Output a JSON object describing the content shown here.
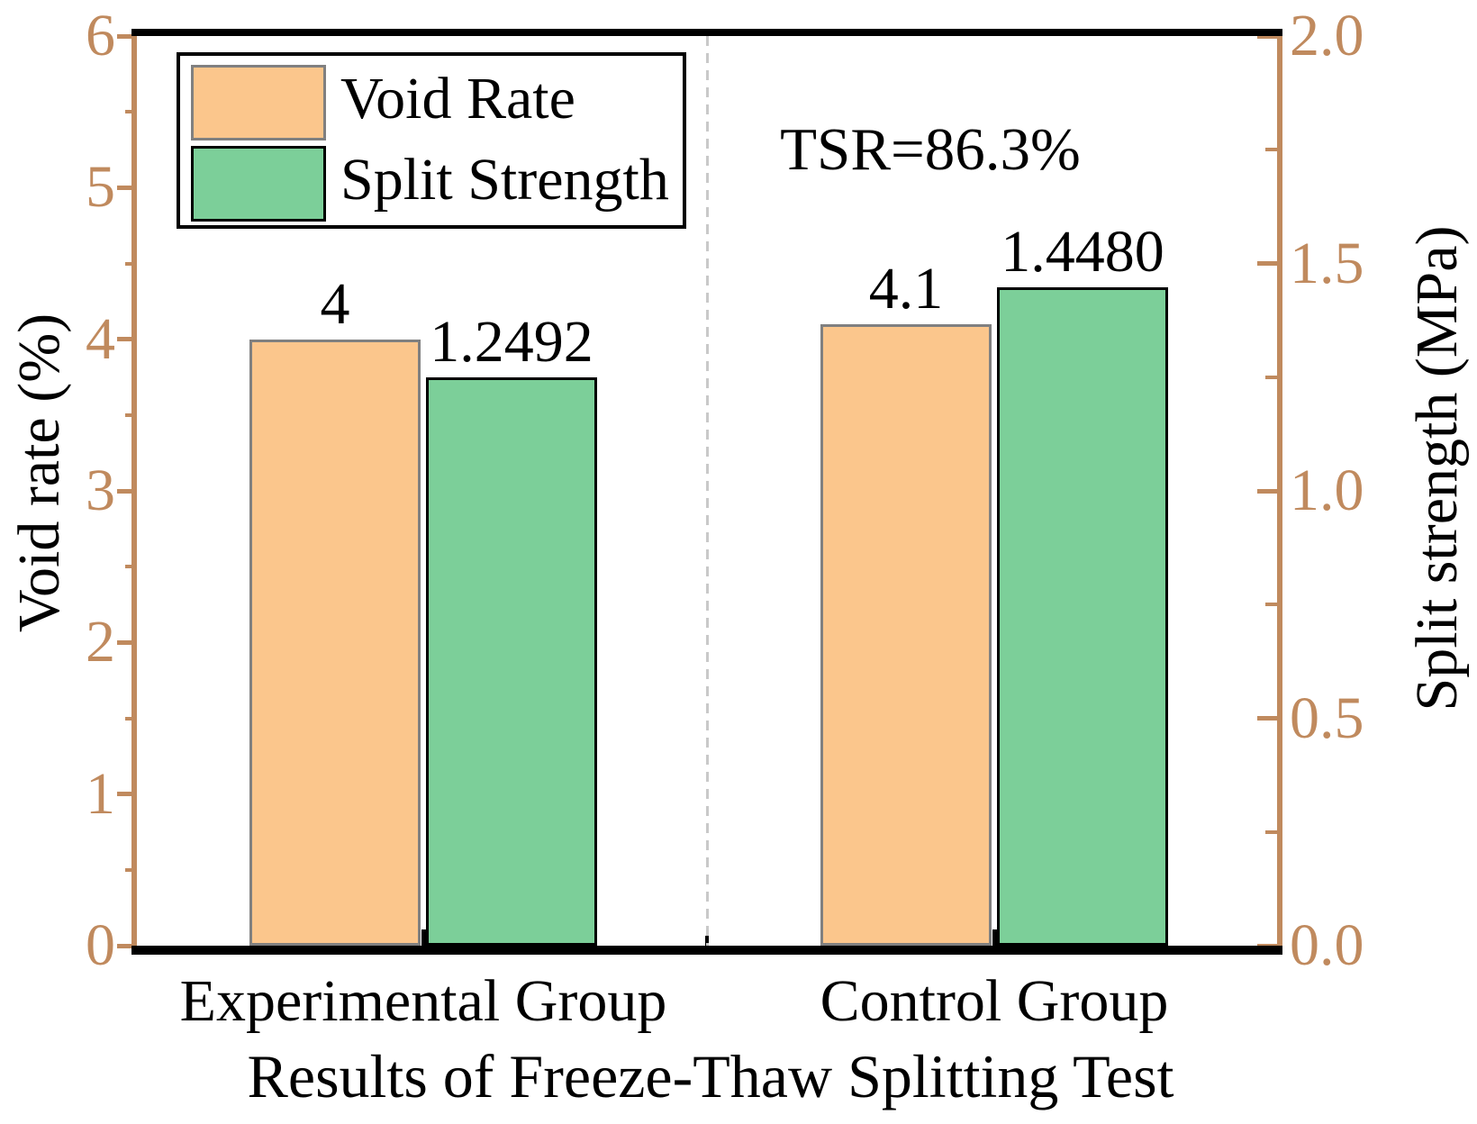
{
  "chart_data": {
    "type": "bar",
    "categories": [
      "Experimental Group",
      "Control Group"
    ],
    "series": [
      {
        "name": "Void Rate",
        "axis": "left",
        "values": [
          4,
          4.1
        ],
        "value_labels": [
          "4",
          "4.1"
        ]
      },
      {
        "name": "Split Strength",
        "axis": "right",
        "values": [
          1.2492,
          1.448
        ],
        "value_labels": [
          "1.2492",
          "1.4480"
        ]
      }
    ],
    "xlabel": "Results of Freeze-Thaw Splitting Test",
    "ylabel_left": "Void rate (%)",
    "ylabel_right": "Split strength (MPa)",
    "left_axis": {
      "min": 0,
      "max": 6,
      "major_ticks": [
        0,
        1,
        2,
        3,
        4,
        5,
        6
      ],
      "tick_labels": [
        "0",
        "1",
        "2",
        "3",
        "4",
        "5",
        "6"
      ],
      "minor_step": 0.5
    },
    "right_axis": {
      "min": 0,
      "max": 2,
      "major_ticks": [
        0,
        0.5,
        1,
        1.5,
        2
      ],
      "tick_labels": [
        "0.0",
        "0.5",
        "1.0",
        "1.5",
        "2.0"
      ],
      "minor_step": 0.25
    },
    "annotation": "TSR=86.3%",
    "legend_position": "upper-left",
    "grid": false,
    "divider": "vertical dashed line between groups"
  },
  "legend": {
    "items": [
      {
        "label": "Void Rate",
        "swatch": "orange-gray-border"
      },
      {
        "label": "Split Strength",
        "swatch": "green-black-border"
      }
    ]
  },
  "annotation": {
    "text": "TSR=86.3%"
  },
  "colors": {
    "axis_tan": "#C08A5E",
    "bar_orange_fill": "#FBC68C",
    "bar_orange_border": "#808080",
    "bar_green_fill": "#7CCF99",
    "bar_green_border": "#000000",
    "divider_gray": "#C9C9C9",
    "text": "#000000",
    "background": "#FFFFFF"
  }
}
